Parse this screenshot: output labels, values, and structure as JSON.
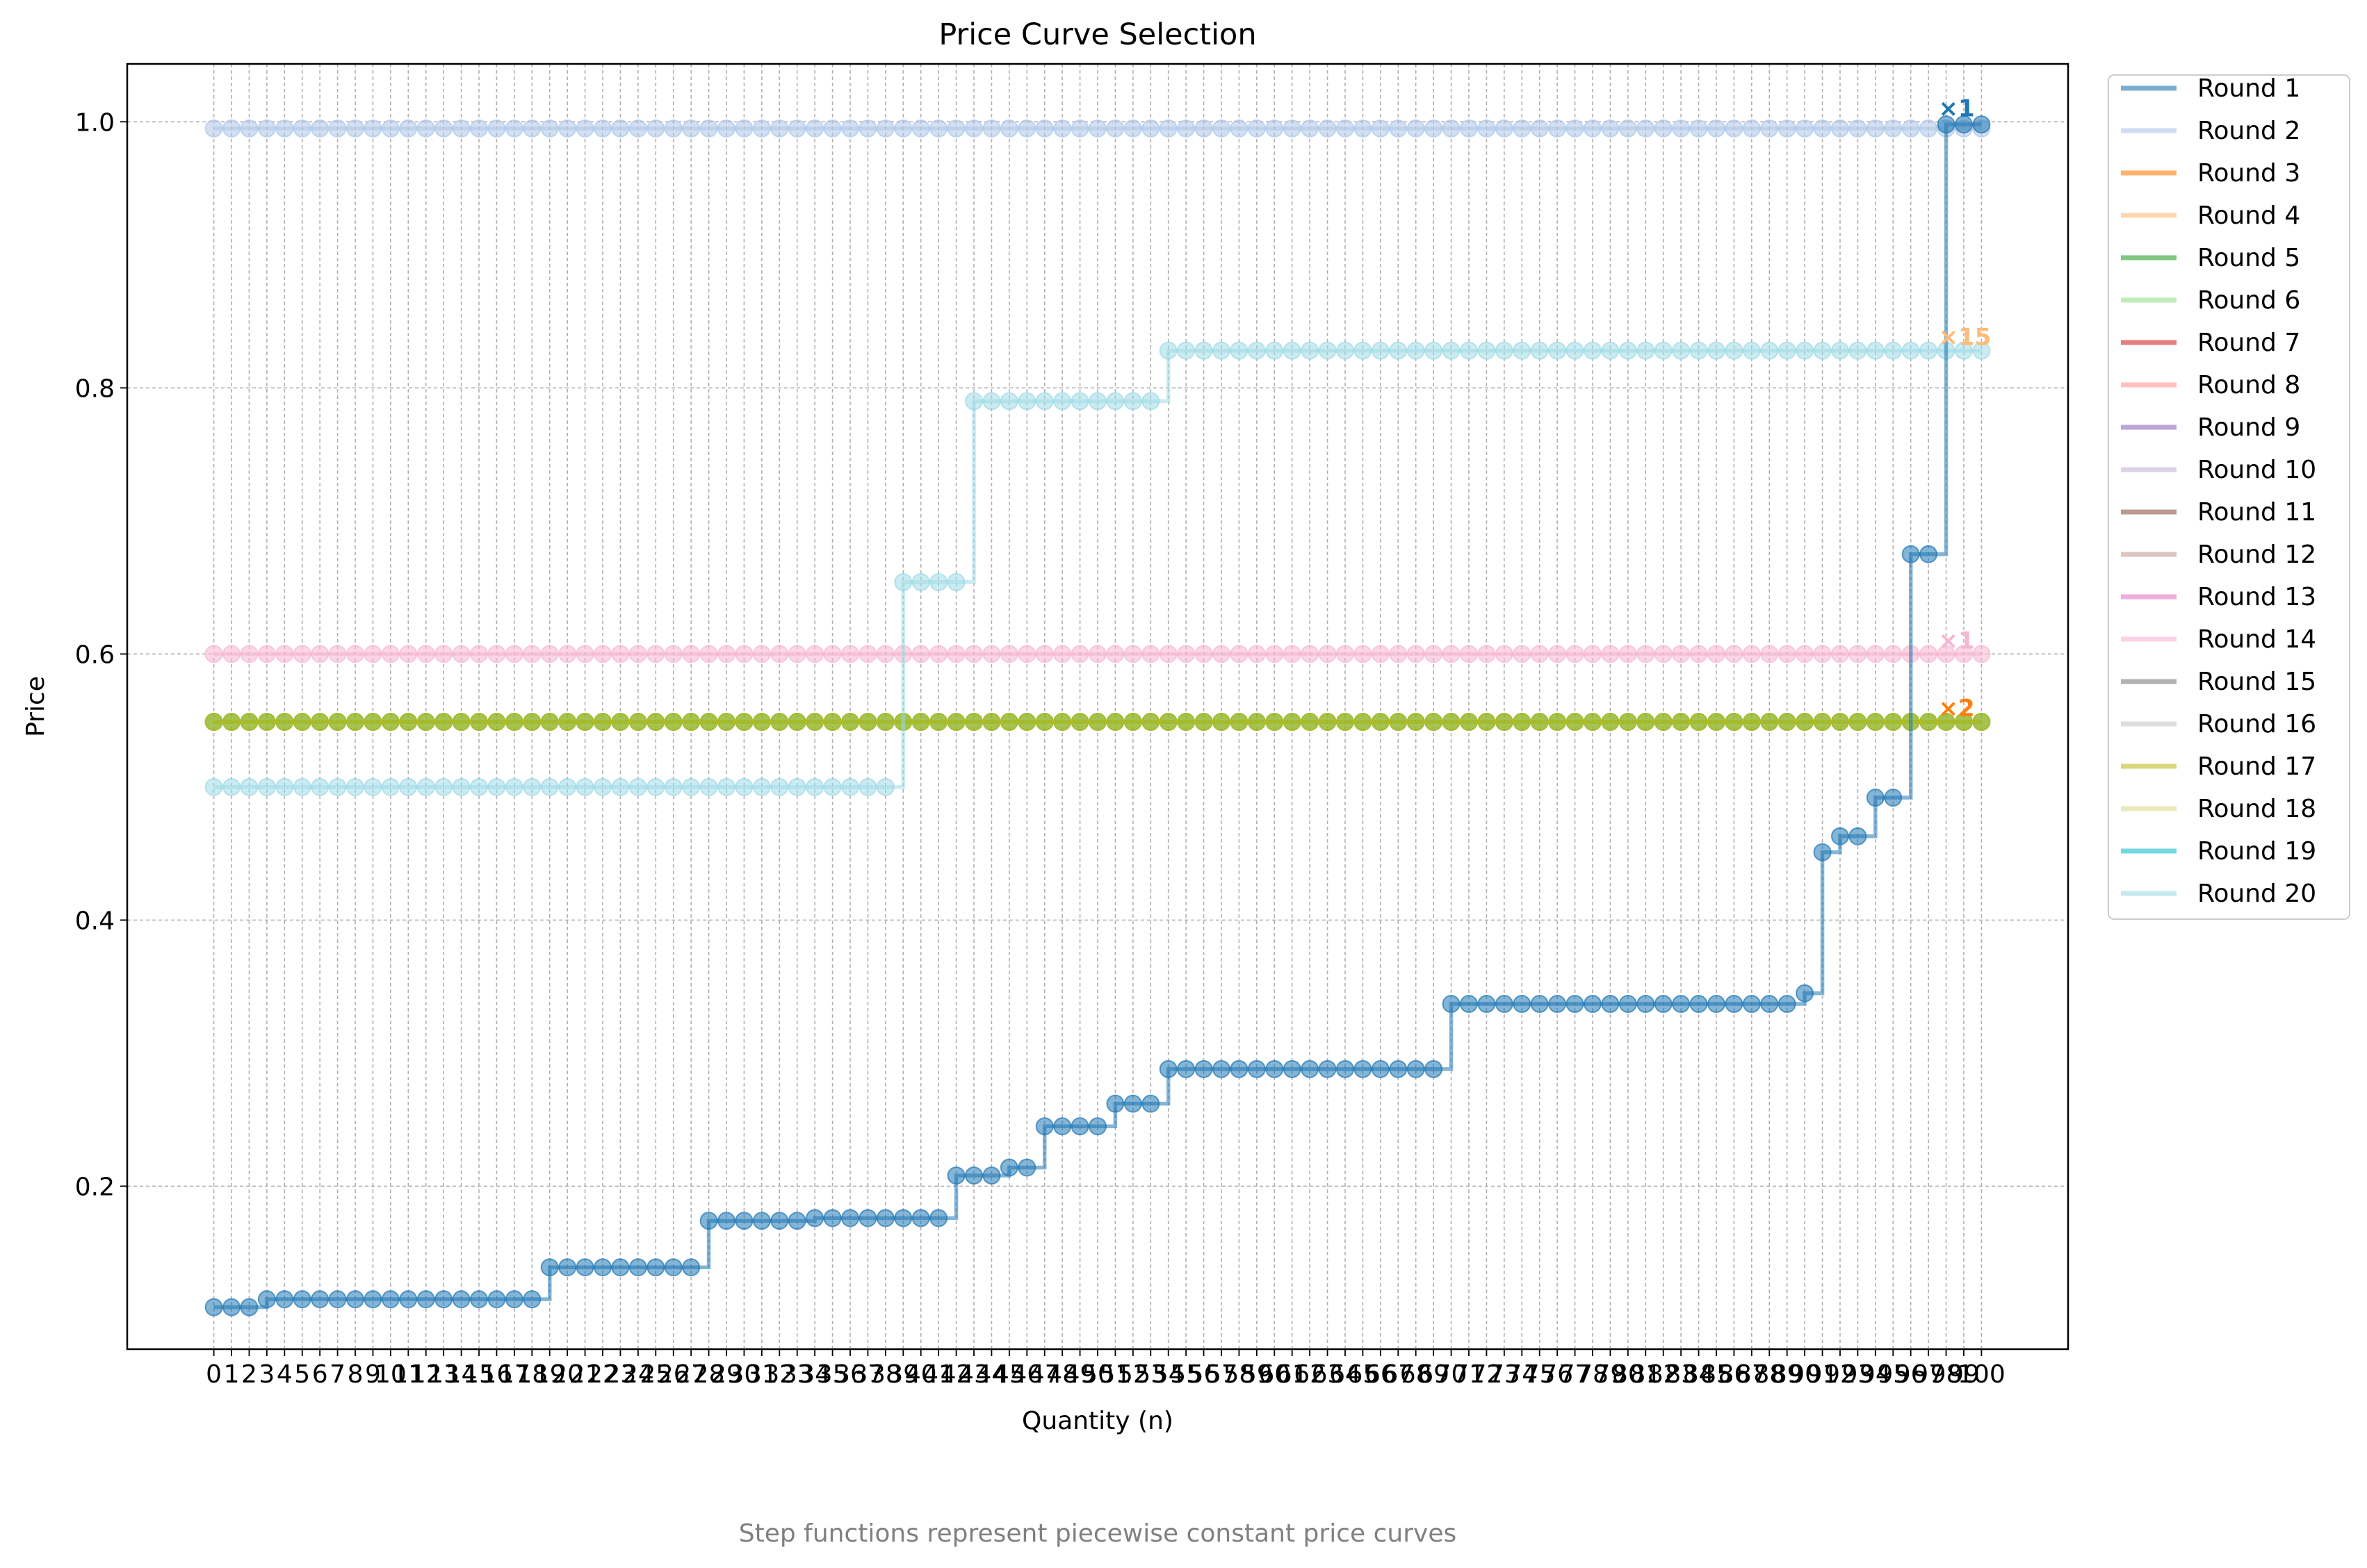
{
  "chart_data": {
    "type": "line",
    "title": "Price Curve Selection",
    "xlabel": "Quantity (n)",
    "ylabel": "Price",
    "caption": "Step functions represent piecewise constant price curves",
    "xlim": [
      -4.9,
      104.9
    ],
    "ylim": [
      0.0775,
      1.0435
    ],
    "x_ticks": [
      0,
      1,
      2,
      3,
      4,
      5,
      6,
      7,
      8,
      9,
      10,
      11,
      12,
      13,
      14,
      15,
      16,
      17,
      18,
      19,
      20,
      21,
      22,
      23,
      24,
      25,
      26,
      27,
      28,
      29,
      30,
      31,
      32,
      33,
      34,
      35,
      36,
      37,
      38,
      39,
      40,
      41,
      42,
      43,
      44,
      45,
      46,
      47,
      48,
      49,
      50,
      51,
      52,
      53,
      54,
      55,
      56,
      57,
      58,
      59,
      60,
      61,
      62,
      63,
      64,
      65,
      66,
      67,
      68,
      69,
      70,
      71,
      72,
      73,
      74,
      75,
      76,
      77,
      78,
      79,
      80,
      81,
      82,
      83,
      84,
      85,
      86,
      87,
      88,
      89,
      90,
      91,
      92,
      93,
      94,
      95,
      96,
      97,
      98,
      99,
      100
    ],
    "y_ticks": [
      0.2,
      0.4,
      0.6,
      0.8,
      1.0
    ],
    "y_tick_labels": [
      "0.2",
      "0.4",
      "0.6",
      "0.8",
      "1.0"
    ],
    "grid": true,
    "legend_position": "outside-right",
    "legend": [
      {
        "name": "Round 1",
        "color": "#1f77b4"
      },
      {
        "name": "Round 2",
        "color": "#aec7e8"
      },
      {
        "name": "Round 3",
        "color": "#ff7f0e"
      },
      {
        "name": "Round 4",
        "color": "#ffbb78"
      },
      {
        "name": "Round 5",
        "color": "#2ca02c"
      },
      {
        "name": "Round 6",
        "color": "#98df8a"
      },
      {
        "name": "Round 7",
        "color": "#d62728"
      },
      {
        "name": "Round 8",
        "color": "#ff9896"
      },
      {
        "name": "Round 9",
        "color": "#9467bd"
      },
      {
        "name": "Round 10",
        "color": "#c5b0d5"
      },
      {
        "name": "Round 11",
        "color": "#8c564b"
      },
      {
        "name": "Round 12",
        "color": "#c49c94"
      },
      {
        "name": "Round 13",
        "color": "#e377c2"
      },
      {
        "name": "Round 14",
        "color": "#f7b6d2"
      },
      {
        "name": "Round 15",
        "color": "#7f7f7f"
      },
      {
        "name": "Round 16",
        "color": "#c7c7c7"
      },
      {
        "name": "Round 17",
        "color": "#bcbd22"
      },
      {
        "name": "Round 18",
        "color": "#dbdb8d"
      },
      {
        "name": "Round 19",
        "color": "#17becf"
      },
      {
        "name": "Round 20",
        "color": "#9edae5"
      }
    ],
    "series": [
      {
        "name": "Round 2",
        "color": "#aec7e8",
        "segments": [
          [
            0,
            100,
            0.995
          ]
        ]
      },
      {
        "name": "Round 14",
        "color": "#f7b6d2",
        "segments": [
          [
            0,
            100,
            0.6
          ]
        ]
      },
      {
        "name": "Round 5",
        "color": "#2ca02c",
        "segments": [
          [
            0,
            100,
            0.549
          ]
        ]
      },
      {
        "name": "Round 17",
        "color": "#bcbd22",
        "segments": [
          [
            0,
            100,
            0.549
          ]
        ]
      },
      {
        "name": "Round 20",
        "color": "#9edae5",
        "segments": [
          [
            0,
            38,
            0.5
          ],
          [
            39,
            42,
            0.654
          ],
          [
            43,
            53,
            0.79
          ],
          [
            54,
            100,
            0.828
          ]
        ]
      },
      {
        "name": "Round 1",
        "color": "#1f77b4",
        "segments": [
          [
            0,
            2,
            0.109
          ],
          [
            3,
            18,
            0.115
          ],
          [
            19,
            27,
            0.139
          ],
          [
            28,
            33,
            0.174
          ],
          [
            34,
            41,
            0.176
          ],
          [
            42,
            44,
            0.208
          ],
          [
            45,
            46,
            0.214
          ],
          [
            47,
            50,
            0.245
          ],
          [
            51,
            53,
            0.262
          ],
          [
            54,
            69,
            0.288
          ],
          [
            70,
            89,
            0.337
          ],
          [
            90,
            90,
            0.345
          ],
          [
            91,
            91,
            0.451
          ],
          [
            92,
            93,
            0.463
          ],
          [
            94,
            95,
            0.492
          ],
          [
            96,
            97,
            0.675
          ],
          [
            98,
            100,
            0.998
          ]
        ]
      }
    ],
    "annotations": [
      {
        "text": "×1",
        "x": 98,
        "y": 1.0,
        "color": "#1f77b4"
      },
      {
        "text": "×15",
        "x": 98,
        "y": 0.828,
        "color": "#ffbb78"
      },
      {
        "text": "×1",
        "x": 98,
        "y": 0.6,
        "color": "#f7b6d2"
      },
      {
        "text": "×2",
        "x": 98,
        "y": 0.549,
        "color": "#ff7f0e"
      }
    ]
  }
}
